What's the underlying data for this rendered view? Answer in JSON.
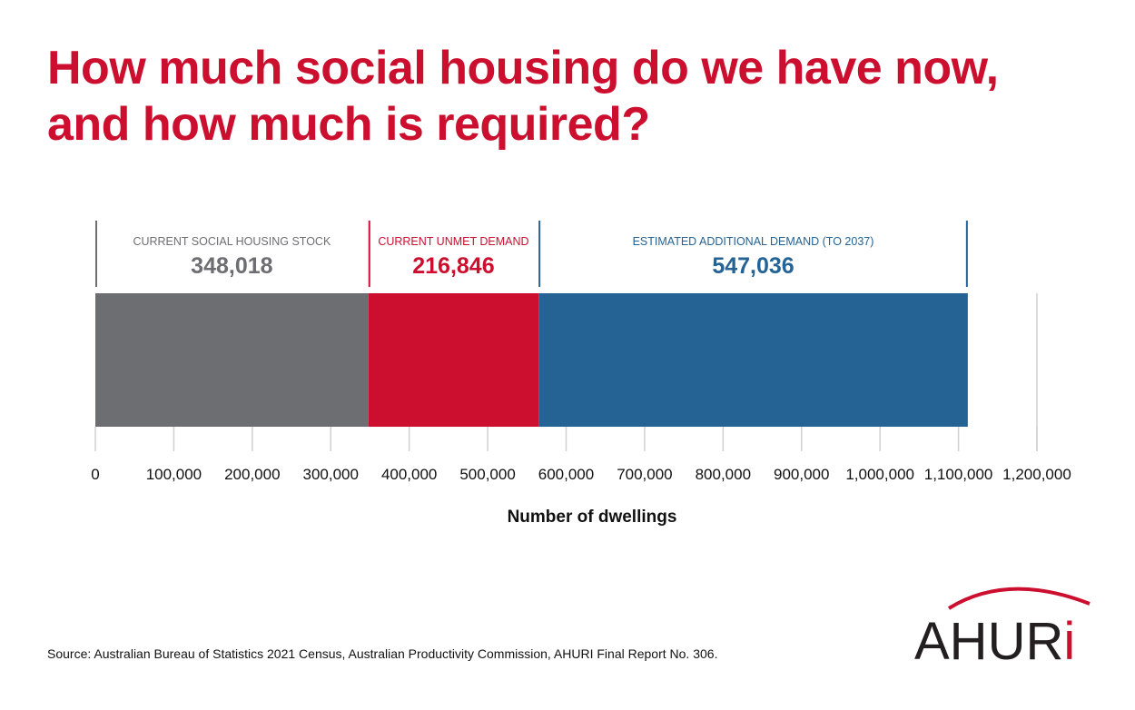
{
  "title_lines": [
    "How much social housing do we have now,",
    "and how much is required?"
  ],
  "chart_data": {
    "type": "bar",
    "orientation": "horizontal",
    "stacked": true,
    "title": "How much social housing do we have now, and how much is required?",
    "xlabel": "Number of dwellings",
    "ylabel": "",
    "xlim": [
      0,
      1200000
    ],
    "xticks": [
      0,
      100000,
      200000,
      300000,
      400000,
      500000,
      600000,
      700000,
      800000,
      900000,
      1000000,
      1100000,
      1200000
    ],
    "xtick_labels": [
      "0",
      "100,000",
      "200,000",
      "300,000",
      "400,000",
      "500,000",
      "600,000",
      "700,000",
      "800,000",
      "900,000",
      "1,000,000",
      "1,100,000",
      "1,200,000"
    ],
    "series": [
      {
        "name": "CURRENT SOCIAL HOUSING STOCK",
        "value": 348018,
        "label": "348,018",
        "color": "#6d6e71"
      },
      {
        "name": "CURRENT UNMET DEMAND",
        "value": 216846,
        "label": "216,846",
        "color": "#cc0f2f"
      },
      {
        "name": "ESTIMATED ADDITIONAL DEMAND (TO 2037)",
        "value": 547036,
        "label": "547,036",
        "color": "#256395"
      }
    ],
    "grid": false
  },
  "source": "Source: Australian Bureau of Statistics 2021 Census, Australian Productivity Commission, AHURI Final Report No. 306.",
  "logo": {
    "text_main": "AHUR",
    "text_accent": "i",
    "color_main": "#231f20",
    "color_accent": "#cc0f2f"
  }
}
